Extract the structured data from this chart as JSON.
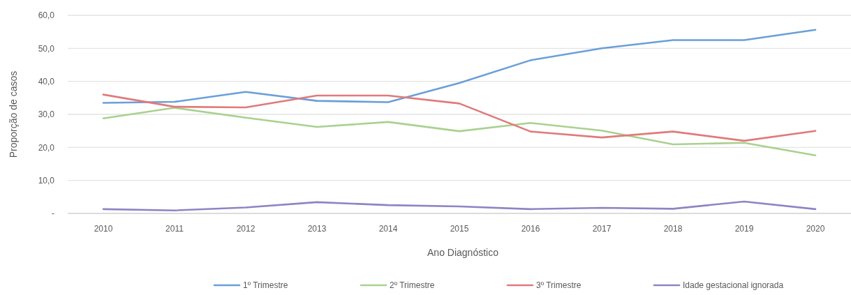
{
  "chart_data": {
    "type": "line",
    "xlabel": "Ano Diagnóstico",
    "ylabel": "Proporção de casos",
    "categories": [
      "2010",
      "2011",
      "2012",
      "2013",
      "2014",
      "2015",
      "2016",
      "2017",
      "2018",
      "2019",
      "2020"
    ],
    "series": [
      {
        "name": "1º Trimestre",
        "color": "#6a9fd8",
        "values": [
          33.5,
          33.8,
          36.8,
          34.1,
          33.7,
          39.5,
          46.4,
          50.0,
          52.5,
          52.5,
          55.6
        ]
      },
      {
        "name": "2º Trimestre",
        "color": "#a9d18e",
        "values": [
          28.8,
          32.0,
          29.0,
          26.2,
          27.7,
          24.9,
          27.4,
          25.1,
          20.9,
          21.4,
          17.6
        ]
      },
      {
        "name": "3º Trimestre",
        "color": "#e07a7a",
        "values": [
          36.0,
          32.3,
          32.1,
          35.7,
          35.7,
          33.3,
          24.8,
          23.0,
          24.8,
          22.0,
          25.0
        ]
      },
      {
        "name": "Idade gestacional ignorada",
        "color": "#8e84c4",
        "values": [
          1.3,
          0.9,
          1.8,
          3.4,
          2.5,
          2.1,
          1.3,
          1.7,
          1.4,
          3.6,
          1.3
        ]
      }
    ],
    "ylim": [
      0,
      60
    ],
    "yticks": [
      {
        "value": 0,
        "label": "-"
      },
      {
        "value": 10,
        "label": "10,0"
      },
      {
        "value": 20,
        "label": "20,0"
      },
      {
        "value": 30,
        "label": "30,0"
      },
      {
        "value": 40,
        "label": "40,0"
      },
      {
        "value": 50,
        "label": "50,0"
      },
      {
        "value": 60,
        "label": "60,0"
      }
    ],
    "grid": "y",
    "legend": "bottom"
  }
}
